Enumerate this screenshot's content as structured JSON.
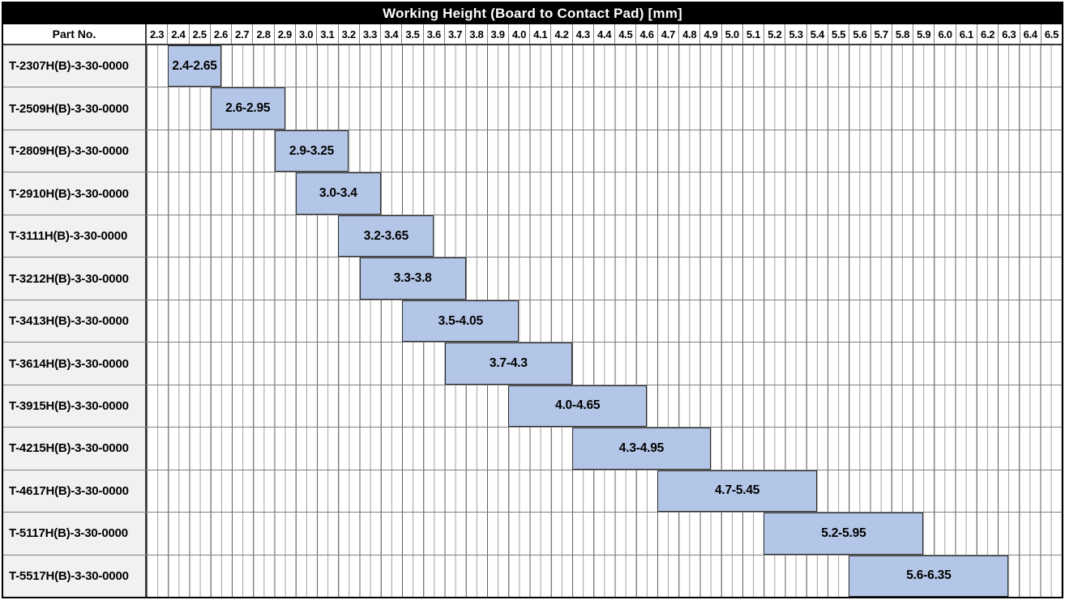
{
  "title": "Working Height (Board to Contact Pad) [mm]",
  "header": {
    "part_no_label": "Part No."
  },
  "colors": {
    "title_bg": "#000000",
    "title_text": "#ffffff",
    "bar_fill": "#b4c6e7",
    "bar_border": "#2b2b2b",
    "part_cell_bg": "#f1f1f1",
    "grid_line_major": "#5f5f5f",
    "grid_line_minor": "#9e9e9e"
  },
  "chart_data": {
    "type": "bar",
    "subtype": "gantt-range",
    "title": "Working Height (Board to Contact Pad) [mm]",
    "axis": {
      "min": 2.3,
      "max": 6.6,
      "major_step": 0.1,
      "minor_step": 0.05
    },
    "ticks": [
      "2.3",
      "2.4",
      "2.5",
      "2.6",
      "2.7",
      "2.8",
      "2.9",
      "3.0",
      "3.1",
      "3.2",
      "3.3",
      "3.4",
      "3.5",
      "3.6",
      "3.7",
      "3.8",
      "3.9",
      "4.0",
      "4.1",
      "4.2",
      "4.3",
      "4.4",
      "4.5",
      "4.6",
      "4.7",
      "4.8",
      "4.9",
      "5.0",
      "5.1",
      "5.2",
      "5.3",
      "5.4",
      "5.5",
      "5.6",
      "5.7",
      "5.8",
      "5.9",
      "6.0",
      "6.1",
      "6.2",
      "6.3",
      "6.4",
      "6.5"
    ],
    "rows": [
      {
        "part": "T-2307H(B)-3-30-0000",
        "start": 2.4,
        "end": 2.65,
        "range_label": "2.4-2.65"
      },
      {
        "part": "T-2509H(B)-3-30-0000",
        "start": 2.6,
        "end": 2.95,
        "range_label": "2.6-2.95"
      },
      {
        "part": "T-2809H(B)-3-30-0000",
        "start": 2.9,
        "end": 3.25,
        "range_label": "2.9-3.25"
      },
      {
        "part": "T-2910H(B)-3-30-0000",
        "start": 3.0,
        "end": 3.4,
        "range_label": "3.0-3.4"
      },
      {
        "part": "T-3111H(B)-3-30-0000",
        "start": 3.2,
        "end": 3.65,
        "range_label": "3.2-3.65"
      },
      {
        "part": "T-3212H(B)-3-30-0000",
        "start": 3.3,
        "end": 3.8,
        "range_label": "3.3-3.8"
      },
      {
        "part": "T-3413H(B)-3-30-0000",
        "start": 3.5,
        "end": 4.05,
        "range_label": "3.5-4.05"
      },
      {
        "part": "T-3614H(B)-3-30-0000",
        "start": 3.7,
        "end": 4.3,
        "range_label": "3.7-4.3"
      },
      {
        "part": "T-3915H(B)-3-30-0000",
        "start": 4.0,
        "end": 4.65,
        "range_label": "4.0-4.65"
      },
      {
        "part": "T-4215H(B)-3-30-0000",
        "start": 4.3,
        "end": 4.95,
        "range_label": "4.3-4.95"
      },
      {
        "part": "T-4617H(B)-3-30-0000",
        "start": 4.7,
        "end": 5.45,
        "range_label": "4.7-5.45"
      },
      {
        "part": "T-5117H(B)-3-30-0000",
        "start": 5.2,
        "end": 5.95,
        "range_label": "5.2-5.95"
      },
      {
        "part": "T-5517H(B)-3-30-0000",
        "start": 5.6,
        "end": 6.35,
        "range_label": "5.6-6.35"
      }
    ]
  }
}
